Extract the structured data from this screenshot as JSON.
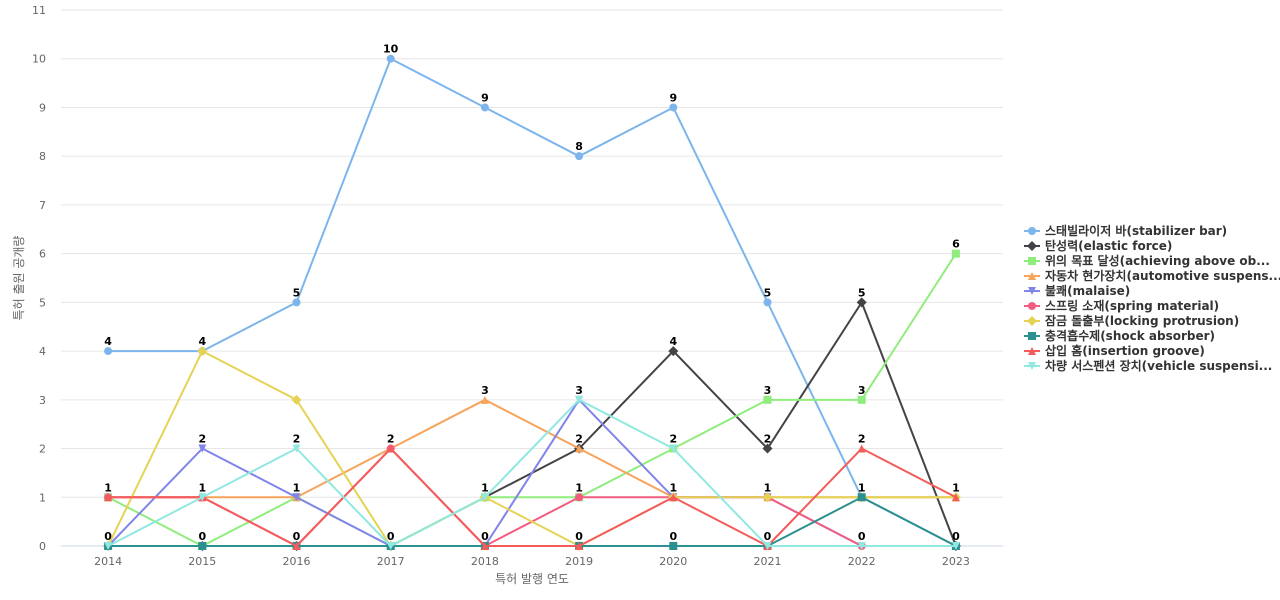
{
  "chart_data": {
    "type": "line",
    "title": "",
    "xlabel": "특허 발행 연도",
    "ylabel": "특허 출원 공개량",
    "categories": [
      "2014",
      "2015",
      "2016",
      "2017",
      "2018",
      "2019",
      "2020",
      "2021",
      "2022",
      "2023"
    ],
    "ylim": [
      0,
      11
    ],
    "y_ticks": [
      "0",
      "1",
      "2",
      "3",
      "4",
      "5",
      "6",
      "7",
      "8",
      "9",
      "10",
      "11"
    ],
    "grid": true,
    "legend_position": "right",
    "series": [
      {
        "name": "스태빌라이저 바(stabilizer bar)",
        "color": "#7cb5ec",
        "marker": "circle",
        "values": [
          4,
          4,
          5,
          10,
          9,
          8,
          9,
          5,
          1,
          0
        ]
      },
      {
        "name": "탄성력(elastic force)",
        "color": "#434348",
        "marker": "diamond",
        "values": [
          0,
          0,
          0,
          0,
          1,
          2,
          4,
          2,
          5,
          0
        ]
      },
      {
        "name": "위의 목표 달성(achieving above ob...",
        "color": "#90ed7d",
        "marker": "square",
        "values": [
          1,
          0,
          1,
          0,
          1,
          1,
          2,
          3,
          3,
          6
        ]
      },
      {
        "name": "자동차 현가장치(automotive suspens...",
        "color": "#f7a35c",
        "marker": "triangle",
        "values": [
          1,
          1,
          1,
          2,
          3,
          2,
          1,
          1,
          1,
          1
        ]
      },
      {
        "name": "불쾌(malaise)",
        "color": "#8085e9",
        "marker": "triangle-down",
        "values": [
          0,
          2,
          1,
          0,
          0,
          3,
          1,
          1,
          0,
          0
        ]
      },
      {
        "name": "스프링 소재(spring material)",
        "color": "#f15c80",
        "marker": "circle",
        "values": [
          1,
          1,
          0,
          2,
          0,
          1,
          1,
          1,
          0,
          0
        ]
      },
      {
        "name": "잠금 돌출부(locking protrusion)",
        "color": "#e4d354",
        "marker": "diamond",
        "values": [
          0,
          4,
          3,
          0,
          1,
          0,
          1,
          1,
          1,
          1
        ]
      },
      {
        "name": "충격흡수제(shock absorber)",
        "color": "#2b908f",
        "marker": "square",
        "values": [
          0,
          0,
          0,
          0,
          0,
          0,
          0,
          0,
          1,
          0
        ]
      },
      {
        "name": "삽입 홈(insertion groove)",
        "color": "#f45b5b",
        "marker": "triangle",
        "values": [
          1,
          1,
          0,
          2,
          0,
          0,
          1,
          0,
          2,
          1
        ]
      },
      {
        "name": "차량 서스펜션 장치(vehicle suspensi...",
        "color": "#91e8e1",
        "marker": "triangle-down",
        "values": [
          0,
          1,
          2,
          0,
          1,
          3,
          2,
          0,
          0,
          0
        ]
      }
    ],
    "data_labels": [
      {
        "x": "2014",
        "value": "4"
      },
      {
        "x": "2015",
        "value": "4"
      },
      {
        "x": "2016",
        "value": "5"
      },
      {
        "x": "2017",
        "value": "10"
      },
      {
        "x": "2018",
        "value": "9"
      },
      {
        "x": "2019",
        "value": "8"
      },
      {
        "x": "2020",
        "value": "9"
      },
      {
        "x": "2021",
        "value": "5"
      },
      {
        "x": "2022",
        "value": "5"
      },
      {
        "x": "2023",
        "value": "6"
      },
      {
        "x": "2014",
        "value": "1"
      },
      {
        "x": "2015",
        "value": "2"
      },
      {
        "x": "2016",
        "value": "2"
      },
      {
        "x": "2017",
        "value": "2"
      },
      {
        "x": "2018",
        "value": "3"
      },
      {
        "x": "2019",
        "value": "3"
      },
      {
        "x": "2020",
        "value": "4"
      },
      {
        "x": "2021",
        "value": "3"
      },
      {
        "x": "2022",
        "value": "3"
      },
      {
        "x": "2023",
        "value": "1"
      },
      {
        "x": "2015",
        "value": "1"
      },
      {
        "x": "2016",
        "value": "1"
      },
      {
        "x": "2018",
        "value": "1"
      },
      {
        "x": "2019",
        "value": "2"
      },
      {
        "x": "2020",
        "value": "2"
      },
      {
        "x": "2021",
        "value": "2"
      },
      {
        "x": "2022",
        "value": "2"
      },
      {
        "x": "2019",
        "value": "1"
      },
      {
        "x": "2020",
        "value": "1"
      },
      {
        "x": "2021",
        "value": "1"
      },
      {
        "x": "2022",
        "value": "1"
      },
      {
        "x": "2014",
        "value": "0"
      },
      {
        "x": "2015",
        "value": "0"
      },
      {
        "x": "2016",
        "value": "0"
      },
      {
        "x": "2017",
        "value": "0"
      },
      {
        "x": "2018",
        "value": "0"
      },
      {
        "x": "2019",
        "value": "0"
      },
      {
        "x": "2020",
        "value": "0"
      },
      {
        "x": "2021",
        "value": "0"
      },
      {
        "x": "2022",
        "value": "0"
      },
      {
        "x": "2023",
        "value": "0"
      }
    ]
  }
}
